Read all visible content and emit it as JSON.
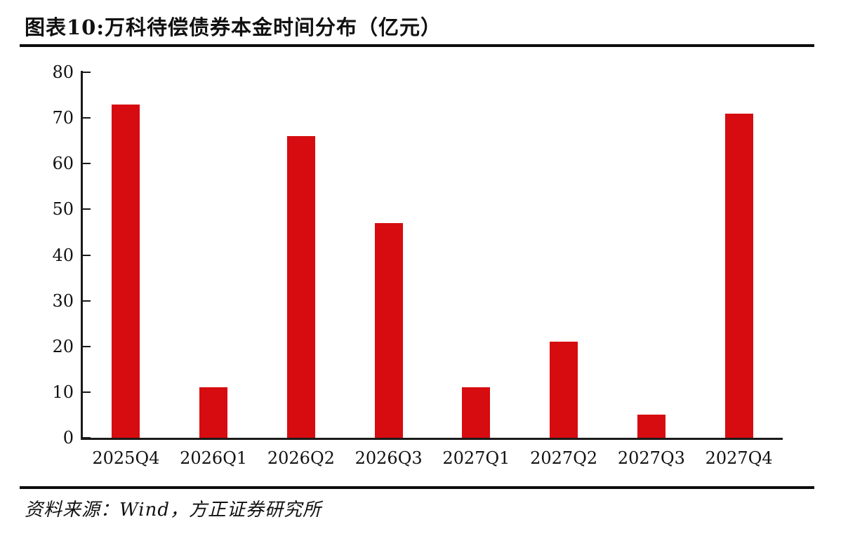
{
  "figure": {
    "title": "图表10:万科待偿债券本金时间分布（亿元）",
    "source": "资料来源：Wind，方正证券研究所"
  },
  "colors": {
    "bar": "#D60C10",
    "axis": "#1a1a1a",
    "divider": "#0d0d0d",
    "text": "#111111"
  },
  "chart_data": {
    "type": "bar",
    "title": "图表10:万科待偿债券本金时间分布（亿元）",
    "unit": "亿元",
    "categories": [
      "2025Q4",
      "2026Q1",
      "2026Q2",
      "2026Q3",
      "2027Q1",
      "2027Q2",
      "2027Q3",
      "2027Q4"
    ],
    "values": [
      73,
      11,
      66,
      47,
      11,
      21,
      5,
      71
    ],
    "xlabel": "",
    "ylabel": "",
    "ylim": [
      0,
      80
    ],
    "ytick_step": 10,
    "ytick_labels": [
      "0",
      "10",
      "20",
      "30",
      "40",
      "50",
      "60",
      "70",
      "80"
    ],
    "grid": false,
    "legend_position": "none",
    "bar_color": "#D60C10"
  }
}
